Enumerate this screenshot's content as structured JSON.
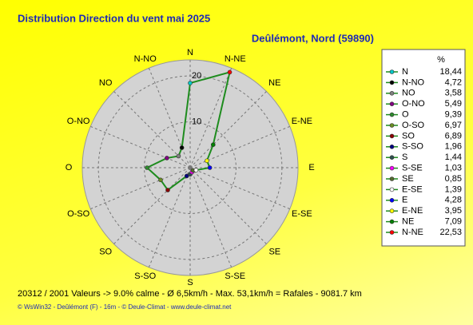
{
  "chart_data": {
    "type": "radar",
    "title": "Distribution Direction du vent   mai 2025",
    "subtitle": "Deûlémont, Nord (59890)",
    "categories": [
      "N",
      "N-NO",
      "NO",
      "O-NO",
      "O",
      "O-SO",
      "SO",
      "S-SO",
      "S",
      "S-SE",
      "SE",
      "E-SE",
      "E",
      "E-NE",
      "NE",
      "N-NE"
    ],
    "series": [
      {
        "name": "%",
        "color": "#1e8c1e",
        "values": [
          18.44,
          4.72,
          3.58,
          5.49,
          9.39,
          6.97,
          6.89,
          1.96,
          1.44,
          1.03,
          0.85,
          1.39,
          4.28,
          3.95,
          7.09,
          22.53
        ],
        "value_labels": [
          "18,44",
          "4,72",
          "3,58",
          "5,49",
          "9,39",
          "6,97",
          "6,89",
          "1,96",
          "1,44",
          "1,03",
          "0,85",
          "1,39",
          "4,28",
          "3,95",
          "7,09",
          "22,53"
        ],
        "marker_colors": [
          "#00c8c8",
          "#000000",
          "#808080",
          "#800080",
          "#2e8b2e",
          "#6b8e23",
          "#8b0000",
          "#000080",
          "#2f4f4f",
          "#ff00ff",
          "#556b2f",
          "#ffffff",
          "#0000ff",
          "#ffff00",
          "#008000",
          "#ff0000"
        ]
      }
    ],
    "rlim": [
      0,
      23.5
    ],
    "rticks": [
      10,
      20
    ],
    "grid": true
  },
  "footer": {
    "stats": "20312 / 2001 Valeurs   -> 9.0% calme   -   Ø 6,5km/h   -   Max. 53,1km/h = Rafales   -    9081.7 km",
    "credits": "© WsWin32  -  Deûlémont (F) - 16m  -  © Deule-Climat  -  www.deule-climat.net"
  }
}
